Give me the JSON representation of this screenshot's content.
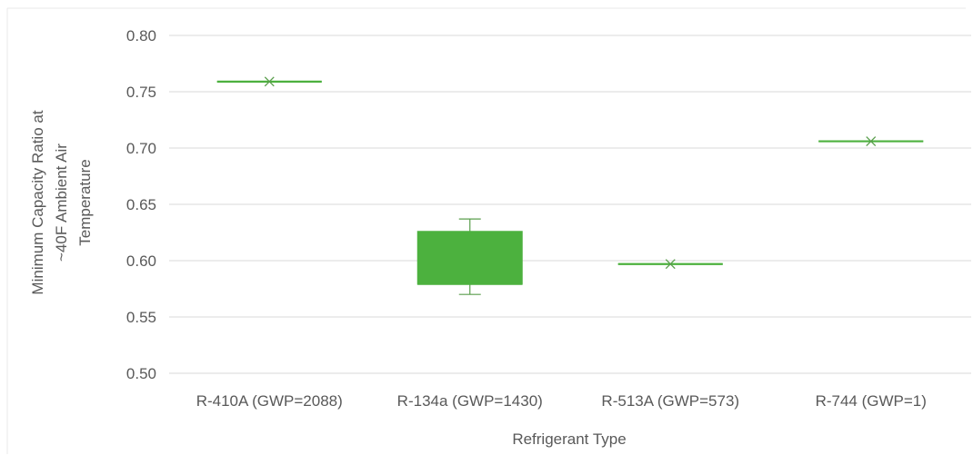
{
  "chart_data": {
    "type": "box",
    "xlabel": "Refrigerant Type",
    "ylabel": [
      "Minimum Capacity Ratio at",
      "~40F Ambient Air",
      "Temperature"
    ],
    "ylim": [
      0.5,
      0.8
    ],
    "yticks": [
      0.5,
      0.55,
      0.6,
      0.65,
      0.7,
      0.75,
      0.8
    ],
    "ytick_labels": [
      "0.50",
      "0.55",
      "0.60",
      "0.65",
      "0.70",
      "0.75",
      "0.80"
    ],
    "grid": "horizontal",
    "categories": [
      "R-410A (GWP=2088)",
      "R-134a (GWP=1430)",
      "R-513A (GWP=573)",
      "R-744 (GWP=1)"
    ],
    "boxes": [
      {
        "category": "R-410A (GWP=2088)",
        "min": 0.759,
        "q1": 0.759,
        "median": 0.759,
        "q3": 0.759,
        "max": 0.759,
        "mean": 0.759
      },
      {
        "category": "R-134a (GWP=1430)",
        "min": 0.57,
        "q1": 0.579,
        "median": 0.579,
        "q3": 0.626,
        "max": 0.637,
        "mean": null
      },
      {
        "category": "R-513A (GWP=573)",
        "min": 0.597,
        "q1": 0.597,
        "median": 0.597,
        "q3": 0.597,
        "max": 0.597,
        "mean": 0.597
      },
      {
        "category": "R-744 (GWP=1)",
        "min": 0.706,
        "q1": 0.706,
        "median": 0.706,
        "q3": 0.706,
        "max": 0.706,
        "mean": 0.706
      }
    ],
    "colors": {
      "box_fill": "#4CB13E",
      "box_line": "#4CB13E",
      "whisker": "#5a9e4c",
      "grid": "#d9d9d9",
      "text": "#595959"
    }
  }
}
